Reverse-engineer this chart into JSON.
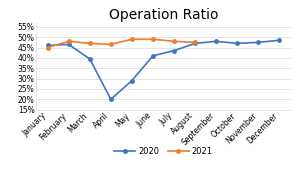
{
  "title": "Operation Ratio",
  "months": [
    "January",
    "February",
    "March",
    "April",
    "May",
    "June",
    "July",
    "August",
    "September",
    "October",
    "November",
    "December"
  ],
  "series_2020": [
    0.46,
    0.465,
    0.395,
    0.2,
    0.29,
    0.41,
    0.435,
    0.47,
    0.48,
    0.47,
    0.475,
    0.485
  ],
  "series_2021": [
    0.45,
    0.48,
    0.47,
    0.465,
    0.49,
    0.49,
    0.48,
    0.475,
    null,
    null,
    null,
    null
  ],
  "color_2020": "#4472C4",
  "color_2021": "#ED7D31",
  "ylim_min": 0.15,
  "ylim_max": 0.57,
  "yticks": [
    0.15,
    0.2,
    0.25,
    0.3,
    0.35,
    0.4,
    0.45,
    0.5,
    0.55
  ],
  "legend_labels": [
    "2020",
    "2021"
  ],
  "background_color": "#FFFFFF",
  "title_fontsize": 10,
  "tick_fontsize": 5.5,
  "legend_fontsize": 6
}
